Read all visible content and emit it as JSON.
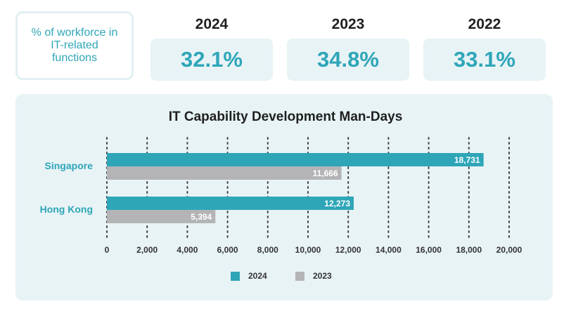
{
  "summary": {
    "label": "% of workforce in IT-related functions",
    "metrics": [
      {
        "year": "2024",
        "value": "32.1%"
      },
      {
        "year": "2023",
        "value": "34.8%"
      },
      {
        "year": "2022",
        "value": "33.1%"
      }
    ]
  },
  "colors": {
    "accent": "#2ea6b8",
    "series_2024": "#2ea6b8",
    "series_2023": "#b4b4b6",
    "panel_bg": "#e8f3f6"
  },
  "chart_data": {
    "type": "bar",
    "orientation": "horizontal",
    "title": "IT Capability Development Man-Days",
    "categories": [
      "Singapore",
      "Hong Kong"
    ],
    "series": [
      {
        "name": "2024",
        "values": [
          18731,
          12273
        ],
        "labels": [
          "18,731",
          "12,273"
        ]
      },
      {
        "name": "2023",
        "values": [
          11666,
          5394
        ],
        "labels": [
          "11,666",
          "5,394"
        ]
      }
    ],
    "xlim": [
      0,
      20000
    ],
    "xticks": [
      0,
      2000,
      4000,
      6000,
      8000,
      10000,
      12000,
      14000,
      16000,
      18000,
      20000
    ],
    "xtick_labels": [
      "0",
      "2,000",
      "4,000",
      "6,000",
      "8,000",
      "10,000",
      "12,000",
      "14,000",
      "16,000",
      "18,000",
      "20,000"
    ],
    "grid": "vertical dotted",
    "legend": "bottom-center"
  }
}
